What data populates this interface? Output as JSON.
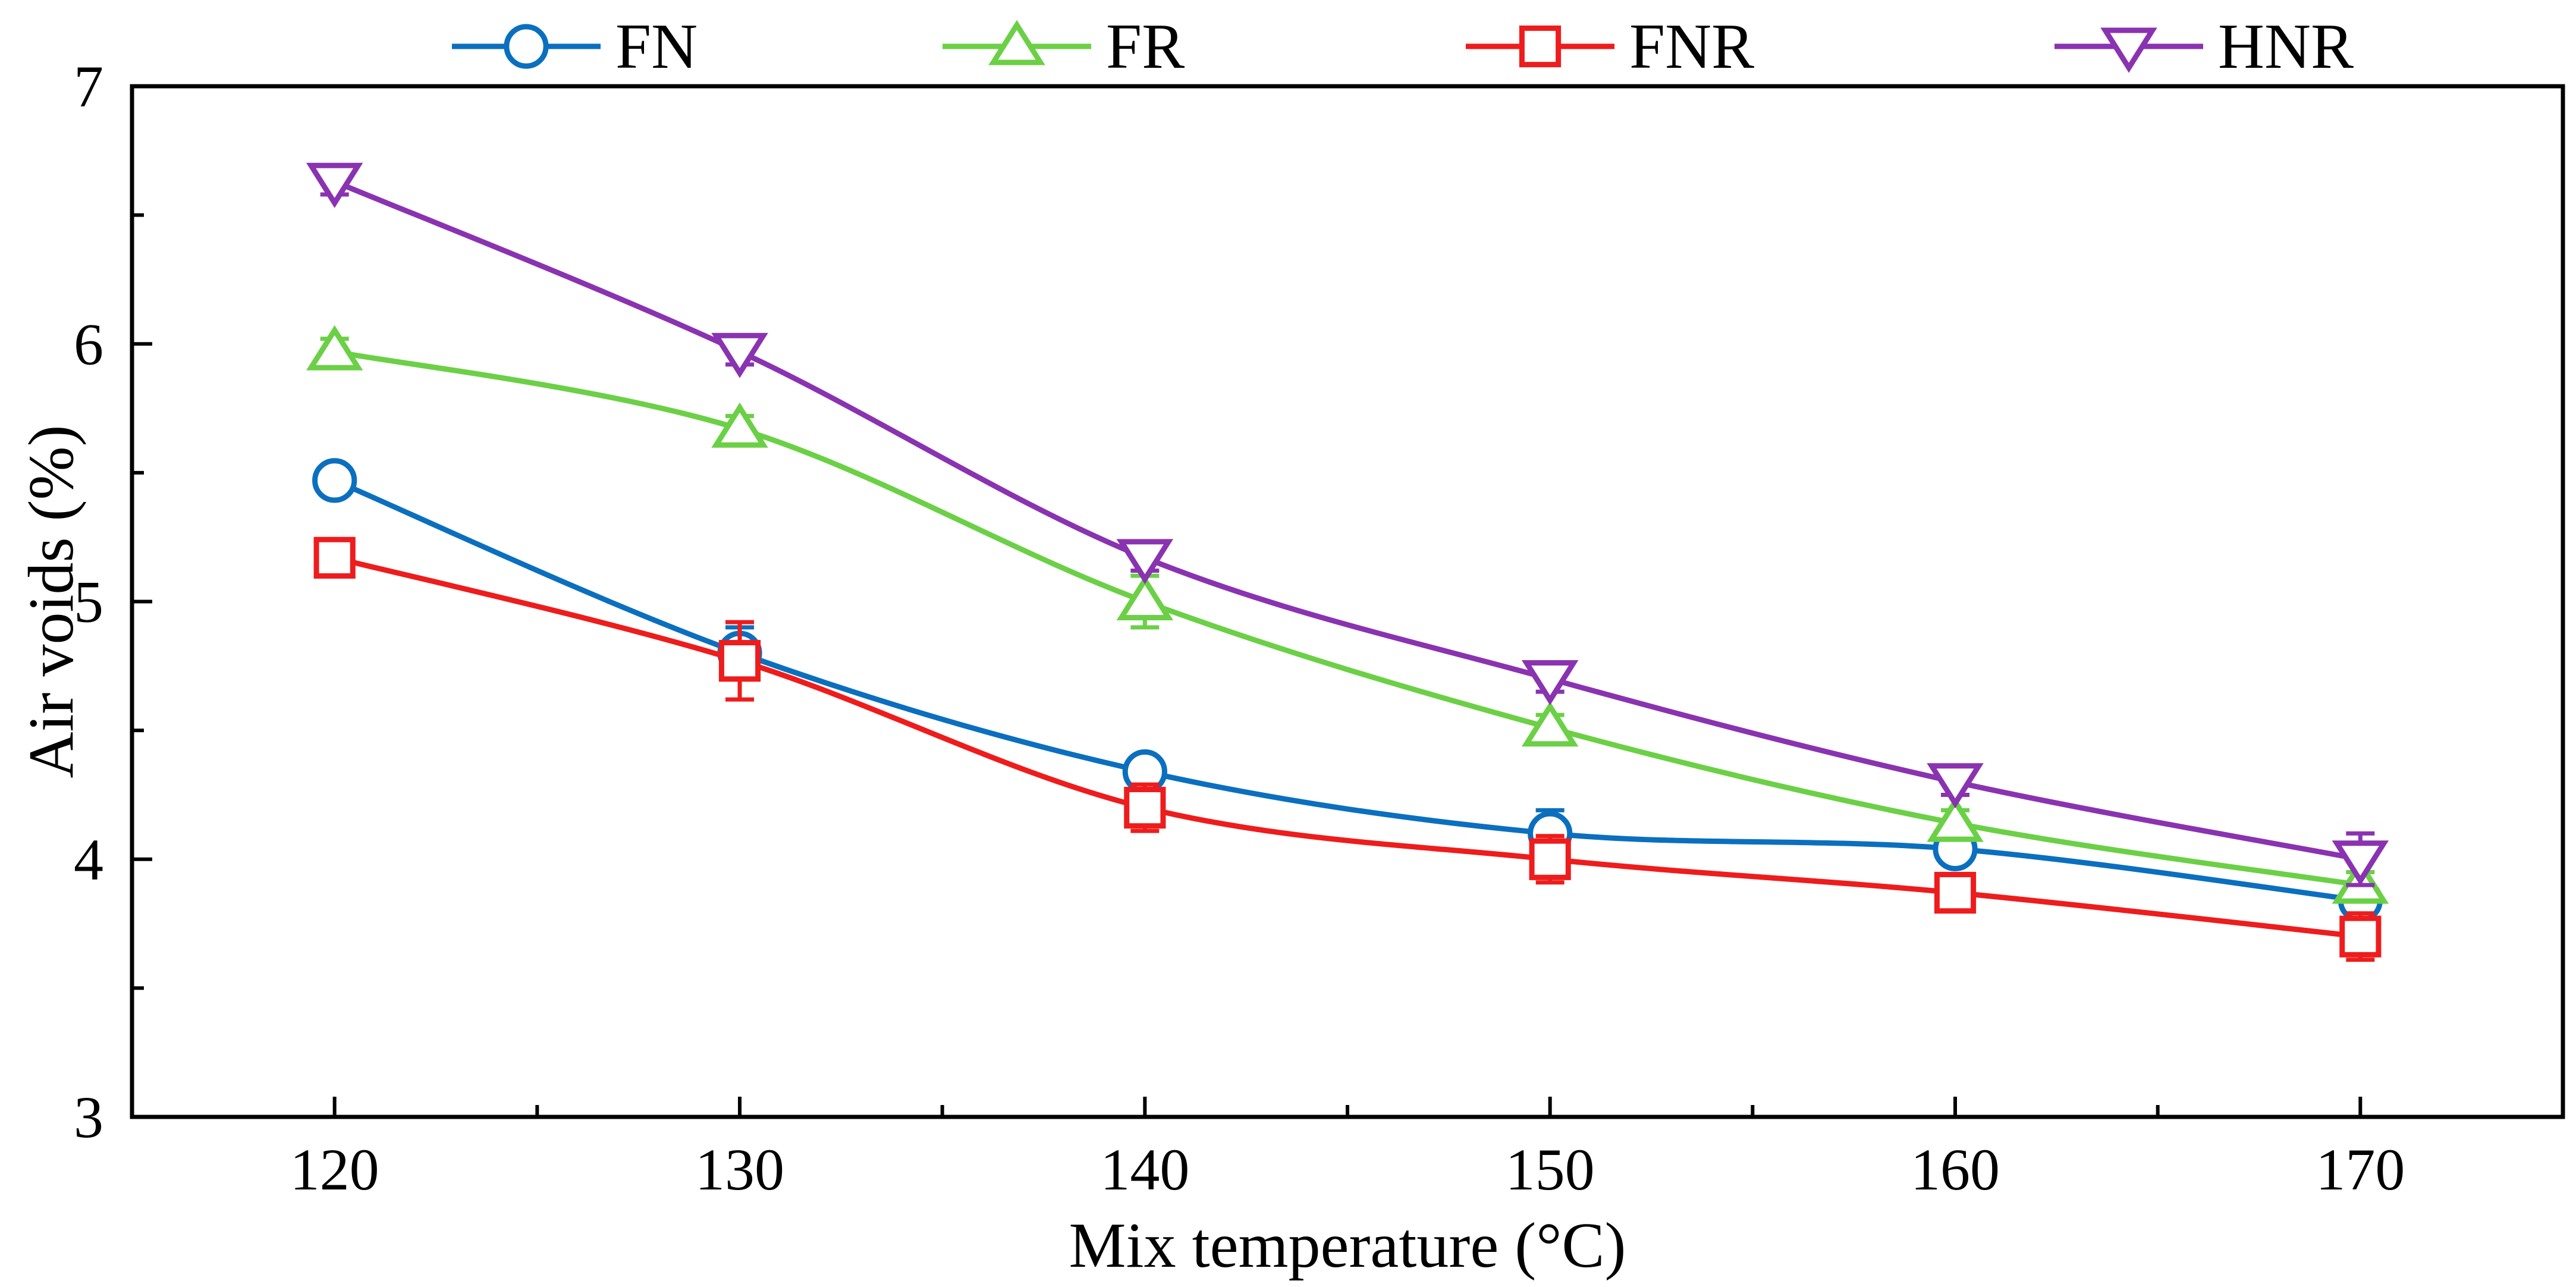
{
  "chart_data": {
    "type": "line",
    "title": "",
    "xlabel": "Mix temperature  (°C)",
    "ylabel": "Air voids  (%)",
    "x": [
      120,
      130,
      140,
      150,
      160,
      170
    ],
    "xlim": [
      115,
      175
    ],
    "ylim": [
      3,
      7
    ],
    "xticks": [
      120,
      130,
      140,
      150,
      160,
      170
    ],
    "yticks": [
      3,
      4,
      5,
      6,
      7
    ],
    "grid": false,
    "legend_position": "top",
    "series": [
      {
        "name": "FN",
        "marker": "circle",
        "color": "#0b6fbf",
        "values": [
          5.47,
          4.8,
          4.34,
          4.1,
          4.04,
          3.84
        ],
        "error": [
          0.05,
          0.1,
          0.05,
          0.09,
          0.05,
          0.05
        ]
      },
      {
        "name": "FR",
        "marker": "triangle-up",
        "color": "#6bd046",
        "values": [
          5.97,
          5.67,
          5.0,
          4.51,
          4.14,
          3.9
        ],
        "error": [
          0.05,
          0.05,
          0.1,
          0.05,
          0.05,
          0.05
        ]
      },
      {
        "name": "FNR",
        "marker": "square",
        "color": "#ee1c1c",
        "values": [
          5.17,
          4.77,
          4.2,
          4.0,
          3.87,
          3.7
        ],
        "error": [
          0.04,
          0.15,
          0.09,
          0.09,
          0.04,
          0.09
        ]
      },
      {
        "name": "HNR",
        "marker": "triangle-down",
        "color": "#8a33b1",
        "values": [
          6.63,
          5.97,
          5.17,
          4.7,
          4.3,
          4.0
        ],
        "error": [
          0.05,
          0.05,
          0.05,
          0.05,
          0.05,
          0.1
        ]
      }
    ]
  }
}
